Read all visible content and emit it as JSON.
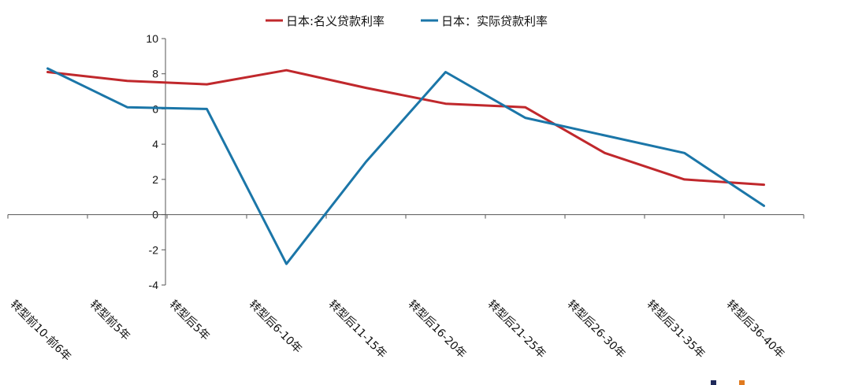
{
  "chart_data": {
    "type": "line",
    "title": "",
    "xlabel": "",
    "ylabel": "",
    "ylim": [
      -4,
      10
    ],
    "yticks": [
      -4,
      -2,
      0,
      2,
      4,
      6,
      8,
      10
    ],
    "ytick_labels": [
      "-4",
      "-2",
      "0",
      "2",
      "4",
      "6",
      "8",
      "10"
    ],
    "grid": false,
    "legend_position": "top-center",
    "categories": [
      "转型前10-前6年",
      "转型前5年",
      "转型后5年",
      "转型后6-10年",
      "转型后11-15年",
      "转型后16-20年",
      "转型后21-25年",
      "转型后26-30年",
      "转型后31-35年",
      "转型后36-40年"
    ],
    "series": [
      {
        "name": "日本:名义贷款利率",
        "color": "#c0282c",
        "values": [
          8.1,
          7.6,
          7.4,
          8.2,
          7.2,
          6.3,
          6.1,
          3.5,
          2.0,
          1.7
        ]
      },
      {
        "name": "日本：实际贷款利率",
        "color": "#1b76a8",
        "values": [
          8.3,
          6.1,
          6.0,
          -2.8,
          3.0,
          8.1,
          5.5,
          4.5,
          3.5,
          0.5
        ]
      }
    ]
  }
}
